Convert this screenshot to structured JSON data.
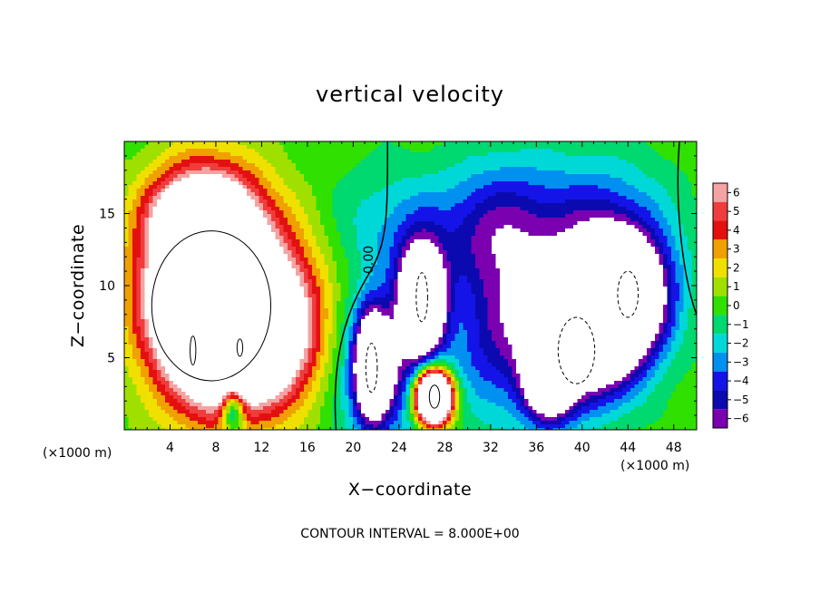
{
  "chart_data": {
    "type": "heatmap",
    "title": "vertical velocity",
    "xlabel": "X−coordinate",
    "ylabel": "Z−coordinate",
    "x_unit_left": "(×1000 m)",
    "x_unit_right": "(×1000 m)",
    "footer": "CONTOUR INTERVAL = 8.000E+00",
    "contour_label": "0.00",
    "xlim": [
      0,
      50
    ],
    "ylim": [
      0,
      20
    ],
    "xticks": [
      4,
      8,
      12,
      16,
      20,
      24,
      28,
      32,
      36,
      40,
      44,
      48
    ],
    "yticks": [
      5,
      10,
      15
    ],
    "colorbar": {
      "labels": [
        "6",
        "5",
        "4",
        "3",
        "2",
        "1",
        "0",
        "−1",
        "−2",
        "−3",
        "−4",
        "−5",
        "−6"
      ],
      "values": [
        6,
        5,
        4,
        3,
        2,
        1,
        0,
        -1,
        -2,
        -3,
        -4,
        -5,
        -6
      ],
      "colors": [
        "#f4a3a3",
        "#f03c3c",
        "#e41010",
        "#f0a000",
        "#f0e000",
        "#a0e000",
        "#30e000",
        "#00d870",
        "#00d8d8",
        "#0090f0",
        "#1414e8",
        "#0a0ab0",
        "#7a00b0"
      ]
    },
    "features": [
      {
        "x": 7.5,
        "z": 9.5,
        "sx": 3.6,
        "sz": 4.6,
        "w": 22
      },
      {
        "x": 11,
        "z": 6,
        "sx": 3,
        "sz": 3,
        "w": 9
      },
      {
        "x": 6.5,
        "z": 15,
        "sx": 3,
        "sz": 2,
        "w": 6
      },
      {
        "x": 14.5,
        "z": 8,
        "sx": 2.6,
        "sz": 4,
        "w": 4.5
      },
      {
        "x": 9.5,
        "z": 1.5,
        "sx": 0.7,
        "sz": 1.2,
        "w": -7
      },
      {
        "x": 27,
        "z": 2.3,
        "sx": 1.1,
        "sz": 1.3,
        "w": 22
      },
      {
        "x": 26,
        "z": 9,
        "sx": 1.4,
        "sz": 2.6,
        "w": -14
      },
      {
        "x": 21.7,
        "z": 4.5,
        "sx": 1.0,
        "sz": 2.5,
        "w": -13
      },
      {
        "x": 23,
        "z": 4,
        "sx": 3,
        "sz": 3.5,
        "w": -5
      },
      {
        "x": 24,
        "z": 14,
        "sx": 4,
        "sz": 3,
        "w": -2.5
      },
      {
        "x": 32,
        "z": 6,
        "sx": 2.5,
        "sz": 4,
        "w": -3.5
      },
      {
        "x": 31,
        "z": 14,
        "sx": 3,
        "sz": 3,
        "w": -2.5
      },
      {
        "x": 40,
        "z": 6.5,
        "sx": 3.5,
        "sz": 3,
        "w": -14
      },
      {
        "x": 43.5,
        "z": 9.5,
        "sx": 2.6,
        "sz": 2.6,
        "w": -13
      },
      {
        "x": 41,
        "z": 13.5,
        "sx": 4.5,
        "sz": 3.5,
        "w": -5
      },
      {
        "x": 37,
        "z": 3,
        "sx": 1.5,
        "sz": 2,
        "w": -8
      },
      {
        "x": 34,
        "z": 13,
        "sx": 3,
        "sz": 4,
        "w": -3
      }
    ]
  }
}
